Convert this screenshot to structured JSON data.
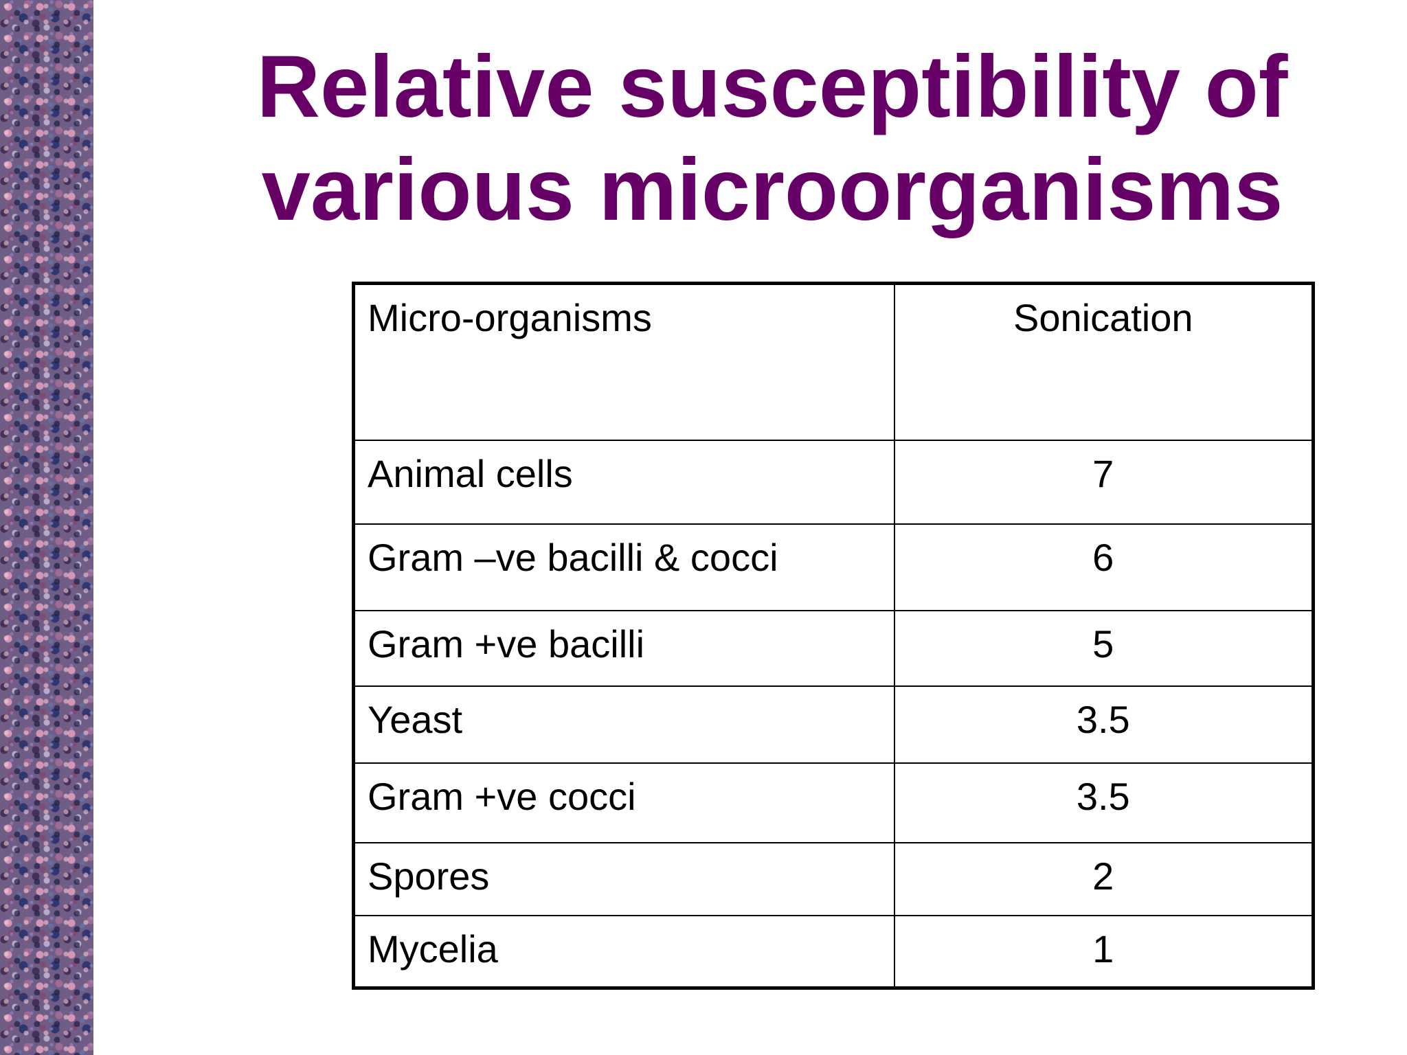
{
  "slide": {
    "title_line1": "Relative susceptibility of",
    "title_line2": "various microorganisms",
    "title_color": "#660066"
  },
  "table": {
    "headers": [
      "Micro-organisms",
      "Sonication"
    ],
    "rows": [
      {
        "name": "Animal cells",
        "value": "7"
      },
      {
        "name": "Gram –ve bacilli & cocci",
        "value": "6"
      },
      {
        "name": "Gram +ve bacilli",
        "value": "5"
      },
      {
        "name": "Yeast",
        "value": "3.5"
      },
      {
        "name": "Gram +ve cocci",
        "value": "3.5"
      },
      {
        "name": "Spores",
        "value": "2"
      },
      {
        "name": "Mycelia",
        "value": "1"
      }
    ]
  }
}
